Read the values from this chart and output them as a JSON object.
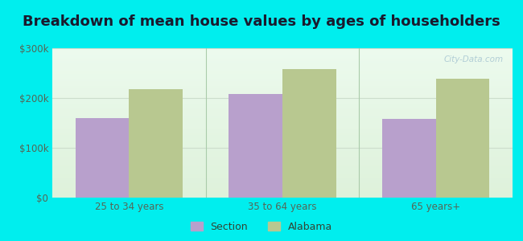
{
  "title": "Breakdown of mean house values by ages of householders",
  "categories": [
    "25 to 34 years",
    "35 to 64 years",
    "65 years+"
  ],
  "section_values": [
    160000,
    208000,
    158000
  ],
  "alabama_values": [
    218000,
    258000,
    238000
  ],
  "section_color": "#b8a0cc",
  "alabama_color": "#b8c890",
  "ylim": [
    0,
    300000
  ],
  "yticks": [
    0,
    100000,
    200000,
    300000
  ],
  "ytick_labels": [
    "$0",
    "$100k",
    "$200k",
    "$300k"
  ],
  "outer_bg": "#00eeee",
  "plot_bg": "#e8f5e0",
  "legend_section": "Section",
  "legend_alabama": "Alabama",
  "bar_width": 0.35,
  "title_fontsize": 13,
  "watermark": "City-Data.com",
  "tick_color": "#556655",
  "grid_color": "#ccddcc",
  "separator_color": "#aaccaa"
}
